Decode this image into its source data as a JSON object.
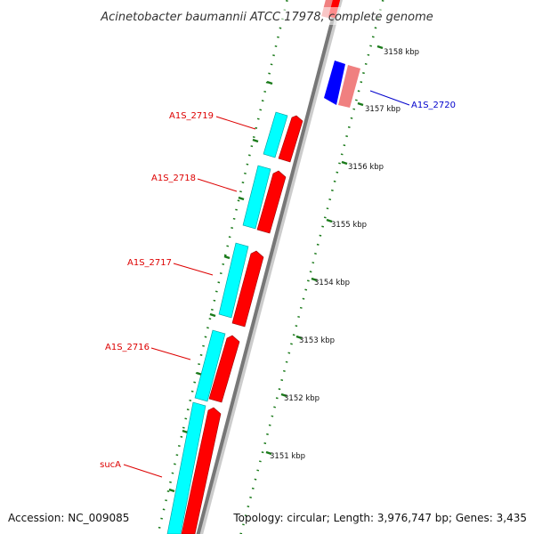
{
  "title": "Acinetobacter baumannii ATCC 17978, complete genome",
  "footer": {
    "accession": "Accession: NC_009085",
    "summary": "Topology: circular; Length: 3,976,747 bp; Genes: 3,435"
  },
  "colors": {
    "forward_cds": "#ff0000",
    "reverse_cds": "#00ffff",
    "blue_cds": "#0000ff",
    "pink_cds": "#f08080",
    "forward_label": "#dd0000",
    "blue_label": "#0000cc",
    "tick": "#1a7a1a",
    "backbone": "#888888"
  },
  "ruler": {
    "unit": "kbp",
    "ticks": [
      {
        "value": 3151,
        "label": "3151 kbp"
      },
      {
        "value": 3152,
        "label": "3152 kbp"
      },
      {
        "value": 3153,
        "label": "3153 kbp"
      },
      {
        "value": 3154,
        "label": "3154 kbp"
      },
      {
        "value": 3155,
        "label": "3155 kbp"
      },
      {
        "value": 3156,
        "label": "3156 kbp"
      },
      {
        "value": 3157,
        "label": "3157 kbp"
      },
      {
        "value": 3158,
        "label": "3158 kbp"
      }
    ]
  },
  "gene_labels": [
    {
      "name": "A1S_2720",
      "color_key": "blue_label"
    },
    {
      "name": "A1S_2719",
      "color_key": "forward_label"
    },
    {
      "name": "A1S_2718",
      "color_key": "forward_label"
    },
    {
      "name": "A1S_2717",
      "color_key": "forward_label"
    },
    {
      "name": "A1S_2716",
      "color_key": "forward_label"
    },
    {
      "name": "sucA",
      "color_key": "forward_label"
    }
  ]
}
